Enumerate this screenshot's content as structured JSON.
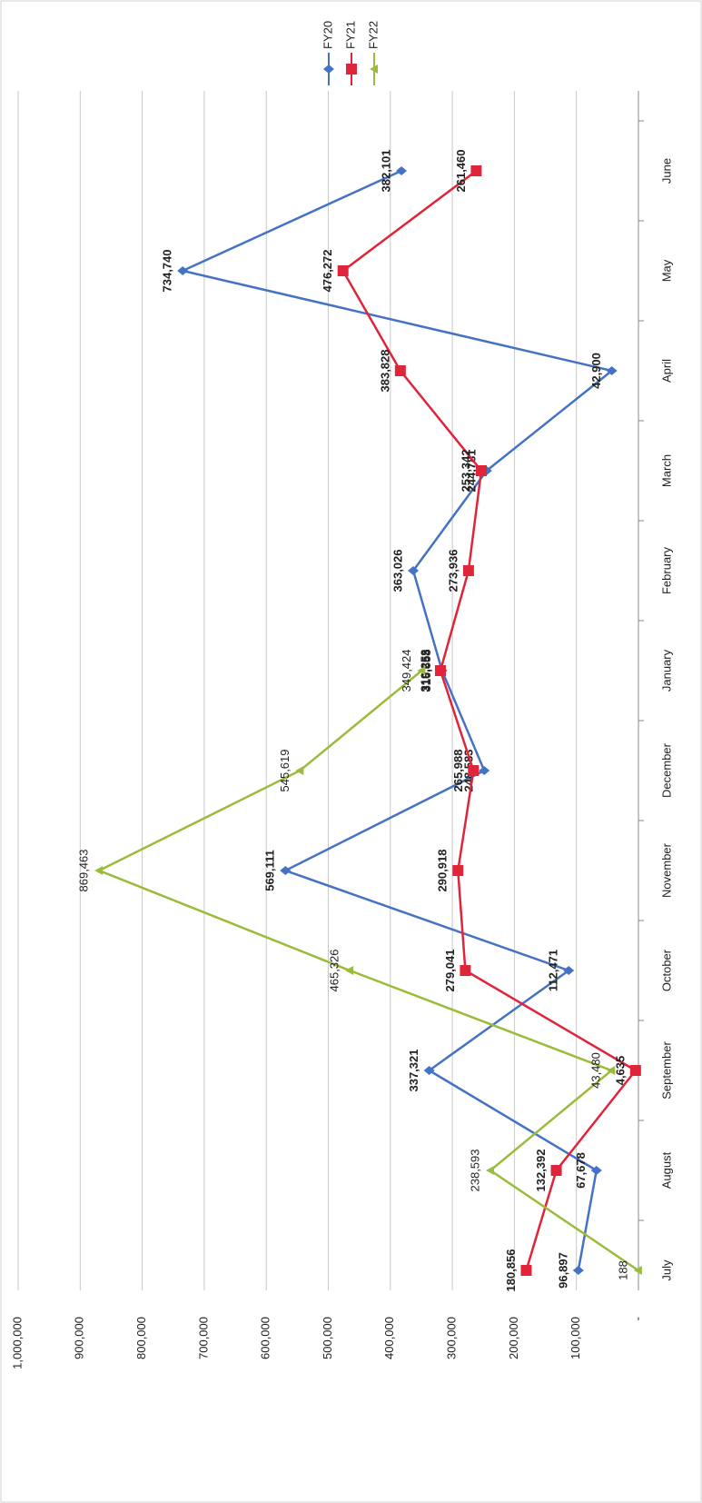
{
  "chart_data": {
    "type": "line",
    "categories": [
      "July",
      "August",
      "September",
      "October",
      "November",
      "December",
      "January",
      "February",
      "March",
      "April",
      "May",
      "June"
    ],
    "series": [
      {
        "name": "FY20",
        "color": "#4472c4",
        "marker": "diamond",
        "values": [
          96897,
          67678,
          337321,
          112471,
          569111,
          248583,
          316658,
          363026,
          244781,
          42900,
          734740,
          382101
        ],
        "value_labels": [
          "96,897",
          "67,678",
          "337,321",
          "112,471",
          "569,111",
          "248,583",
          "316,658",
          "363,026",
          "244,781",
          "42,900",
          "734,740",
          "382,101"
        ]
      },
      {
        "name": "FY21",
        "color": "#e0243a",
        "marker": "square",
        "values": [
          180856,
          132392,
          4635,
          279041,
          290918,
          265988,
          319253,
          273936,
          253342,
          383828,
          476272,
          261460
        ],
        "value_labels": [
          "180,856",
          "132,392",
          "4,635",
          "279,041",
          "290,918",
          "265,988",
          "319,253",
          "273,936",
          "253,342",
          "383,828",
          "476,272",
          "261,460"
        ]
      },
      {
        "name": "FY22",
        "color": "#9bbb3b",
        "marker": "triangle",
        "values": [
          188,
          238593,
          43480,
          465326,
          869463,
          545619,
          349424,
          null,
          null,
          null,
          null,
          null
        ],
        "value_labels": [
          "188",
          "238,593",
          "43,480",
          "465,326",
          "869,463",
          "545,619",
          "349,424",
          null,
          null,
          null,
          null,
          null
        ]
      }
    ],
    "ylim": [
      0,
      1000000
    ],
    "yticks": [
      {
        "value": 0,
        "label": "-"
      },
      {
        "value": 100000,
        "label": "100,000"
      },
      {
        "value": 200000,
        "label": "200,000"
      },
      {
        "value": 300000,
        "label": "300,000"
      },
      {
        "value": 400000,
        "label": "400,000"
      },
      {
        "value": 500000,
        "label": "500,000"
      },
      {
        "value": 600000,
        "label": "600,000"
      },
      {
        "value": 700000,
        "label": "700,000"
      },
      {
        "value": 800000,
        "label": "800,000"
      },
      {
        "value": 900000,
        "label": "900,000"
      },
      {
        "value": 1000000,
        "label": "1,000,000"
      }
    ],
    "grid": true,
    "legend": "top-right",
    "rotated": true
  }
}
